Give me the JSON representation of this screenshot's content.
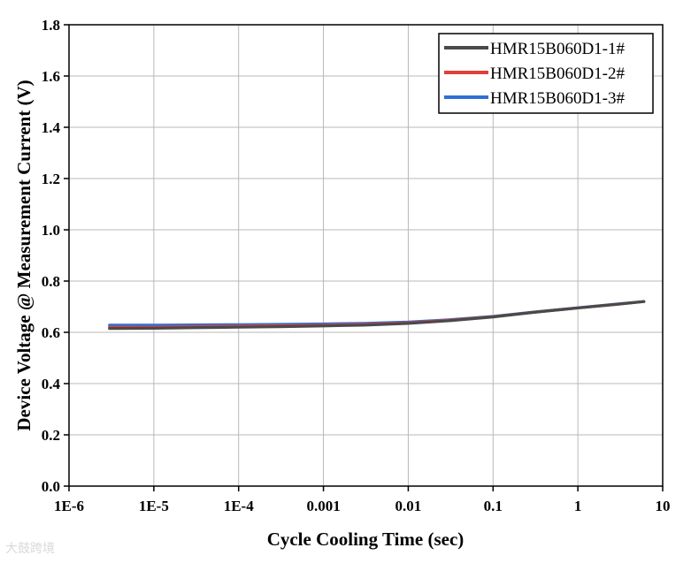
{
  "chart_data": {
    "type": "line",
    "title": "",
    "xlabel": "Cycle Cooling Time (sec)",
    "ylabel": "Device Voltage @ Measurement Current (V)",
    "xscale": "log",
    "xlim": [
      1e-06,
      10
    ],
    "ylim": [
      0.0,
      1.8
    ],
    "x_tick_labels": [
      "1E-6",
      "1E-5",
      "1E-4",
      "0.001",
      "0.01",
      "0.1",
      "1",
      "10"
    ],
    "y_tick_labels": [
      "0.0",
      "0.2",
      "0.4",
      "0.6",
      "0.8",
      "1.0",
      "1.2",
      "1.4",
      "1.6",
      "1.8"
    ],
    "grid": true,
    "legend_position": "top-right",
    "x": [
      3e-06,
      1e-05,
      3e-05,
      0.0001,
      0.0003,
      0.001,
      0.003,
      0.01,
      0.03,
      0.1,
      0.3,
      1,
      3,
      6
    ],
    "series": [
      {
        "name": "HMR15B060D1-1#",
        "color": "#4a4a4a",
        "values": [
          0.615,
          0.616,
          0.618,
          0.62,
          0.622,
          0.625,
          0.628,
          0.635,
          0.645,
          0.66,
          0.678,
          0.695,
          0.71,
          0.72
        ]
      },
      {
        "name": "HMR15B060D1-2#",
        "color": "#e0403a",
        "values": [
          0.62,
          0.62,
          0.622,
          0.624,
          0.626,
          0.628,
          0.631,
          0.637,
          0.647,
          0.661,
          0.678,
          0.695,
          0.71,
          0.72
        ]
      },
      {
        "name": "HMR15B060D1-3#",
        "color": "#2f6fd6",
        "values": [
          0.628,
          0.628,
          0.629,
          0.63,
          0.631,
          0.633,
          0.635,
          0.64,
          0.649,
          0.662,
          0.679,
          0.696,
          0.711,
          0.72
        ]
      }
    ]
  },
  "watermark": "大鼓跨境"
}
